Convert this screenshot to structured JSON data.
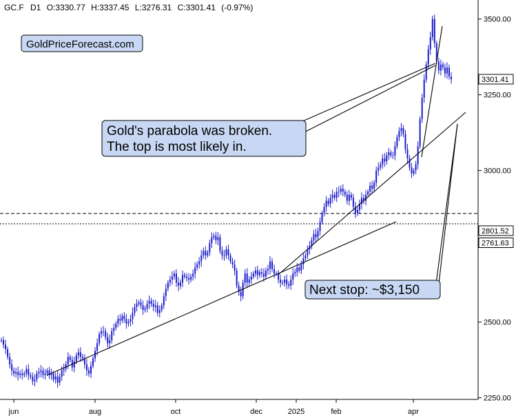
{
  "header": {
    "ticker": "GC.F",
    "timeframe": "D1",
    "open": "O:3330.77",
    "high": "H:3337.45",
    "low": "L:3276.31",
    "close": "C:3301.41",
    "change": "(-0.97%)"
  },
  "branding": {
    "site": "GoldPriceForecast.com"
  },
  "colors": {
    "candles": "#1a1acc",
    "text": "#000000",
    "box_fill": "#c8d8f4",
    "line": "#000000"
  },
  "chart_data": {
    "type": "candlestick",
    "x_ticks": [
      "jun",
      "aug",
      "oct",
      "dec",
      "2025",
      "feb",
      "apr"
    ],
    "y_ticks": [
      "2250.00",
      "2500.00",
      "3000.00",
      "3250.00",
      "3500.00"
    ],
    "ylim": [
      2225,
      3600
    ],
    "grid": false,
    "price_labels": [
      {
        "label": "3301.41",
        "value": 3301.41,
        "style": "current"
      },
      {
        "label": "2801.52",
        "value": 2801.52,
        "style": "dashed"
      },
      {
        "label": "2761.63",
        "value": 2761.63,
        "style": "dotted"
      }
    ],
    "series": [
      {
        "values": [
          2440,
          2425,
          2410,
          2385,
          2360,
          2340,
          2330,
          2335,
          2325,
          2330,
          2325,
          2330,
          2345,
          2325,
          2320,
          2305,
          2310,
          2330,
          2335,
          2340,
          2325,
          2330,
          2340,
          2325,
          2330,
          2310,
          2320,
          2300,
          2320,
          2340,
          2345,
          2360,
          2385,
          2375,
          2350,
          2370,
          2390,
          2400,
          2385,
          2380,
          2360,
          2340,
          2330,
          2355,
          2380,
          2405,
          2430,
          2460,
          2470,
          2470,
          2450,
          2430,
          2440,
          2470,
          2480,
          2495,
          2510,
          2505,
          2520,
          2510,
          2495,
          2500,
          2510,
          2530,
          2550,
          2560,
          2565,
          2555,
          2540,
          2545,
          2560,
          2570,
          2560,
          2550,
          2555,
          2530,
          2540,
          2555,
          2585,
          2610,
          2630,
          2640,
          2650,
          2660,
          2630,
          2620,
          2630,
          2655,
          2650,
          2645,
          2640,
          2650,
          2660,
          2680,
          2690,
          2700,
          2720,
          2735,
          2720,
          2730,
          2760,
          2780,
          2785,
          2770,
          2780,
          2735,
          2720,
          2720,
          2740,
          2720,
          2700,
          2690,
          2670,
          2620,
          2600,
          2585,
          2630,
          2660,
          2630,
          2640,
          2650,
          2660,
          2670,
          2655,
          2665,
          2660,
          2650,
          2670,
          2675,
          2700,
          2675,
          2660,
          2660,
          2640,
          2630,
          2630,
          2640,
          2625,
          2620,
          2640,
          2660,
          2665,
          2680,
          2670,
          2690,
          2710,
          2720,
          2740,
          2750,
          2770,
          2790,
          2780,
          2800,
          2830,
          2860,
          2880,
          2900,
          2890,
          2910,
          2920,
          2910,
          2930,
          2930,
          2940,
          2930,
          2920,
          2900,
          2920,
          2910,
          2880,
          2860,
          2870,
          2890,
          2910,
          2900,
          2920,
          2930,
          2950,
          2940,
          2960,
          3000,
          3010,
          3020,
          3040,
          3030,
          3050,
          3060,
          3050,
          3050,
          3080,
          3110,
          3130,
          3140,
          3120,
          3070,
          3040,
          3010,
          2990,
          3000,
          3020,
          3080,
          3170,
          3240,
          3300,
          3350,
          3400,
          3440,
          3500,
          3420,
          3360,
          3330,
          3350,
          3340,
          3320,
          3340,
          3310,
          3301
        ]
      }
    ],
    "annotations": [
      {
        "text_lines": [
          "Gold's parabola was broken.",
          "The top is most likely in."
        ]
      },
      {
        "text": "Next stop: ~$3,150"
      }
    ]
  }
}
